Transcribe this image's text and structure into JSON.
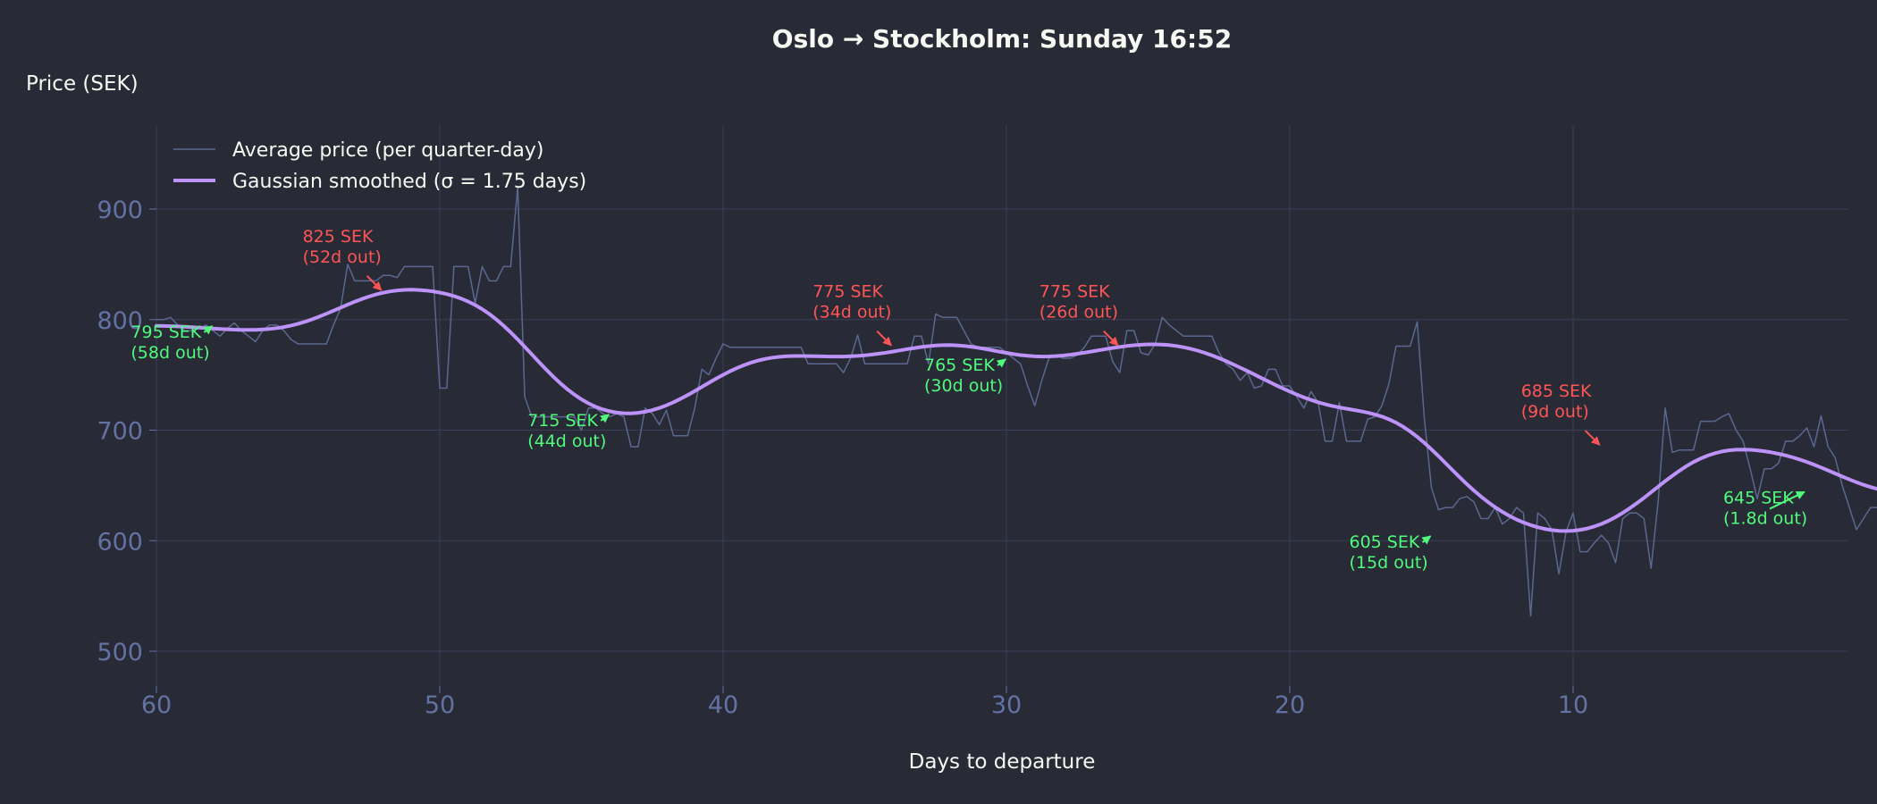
{
  "chart_data": {
    "type": "line",
    "title": "Oslo → Stockholm: Sunday 16:52",
    "xlabel": "Days to departure",
    "ylabel": "Price (SEK)",
    "xlim": [
      60,
      0.25
    ],
    "ylim": [
      475,
      975
    ],
    "x_inverted": true,
    "grid": true,
    "legend_position": "top-left",
    "x_ticks": [
      60,
      50,
      40,
      30,
      20,
      10
    ],
    "x_tick_labels": [
      "60",
      "50",
      "40",
      "30",
      "20",
      "10"
    ],
    "y_ticks": [
      500,
      600,
      700,
      800,
      900
    ],
    "y_tick_labels": [
      "500",
      "600",
      "700",
      "800",
      "900"
    ],
    "colors": {
      "background": "#282a36",
      "raw": "#5a6890",
      "smoothed": "#bd93f9",
      "peak": "#ff5555",
      "trough": "#50fa7b",
      "tick": "#6272a4",
      "grid": "#3a3f58",
      "text": "#f8f8f2"
    },
    "series": [
      {
        "name": "Average price (per quarter-day)",
        "sampling_days": 0.25,
        "x_start": 60,
        "values": [
          800,
          800,
          802,
          795,
          790,
          790,
          792,
          795,
          790,
          785,
          792,
          797,
          790,
          785,
          780,
          790,
          795,
          795,
          790,
          782,
          778,
          778,
          778,
          778,
          778,
          795,
          810,
          850,
          835,
          835,
          835,
          835,
          840,
          840,
          838,
          848,
          848,
          848,
          848,
          848,
          738,
          738,
          848,
          848,
          848,
          815,
          848,
          835,
          835,
          848,
          848,
          920,
          730,
          712,
          712,
          712,
          712,
          712,
          712,
          712,
          700,
          720,
          720,
          715,
          712,
          715,
          712,
          685,
          685,
          720,
          715,
          705,
          718,
          695,
          695,
          695,
          720,
          755,
          750,
          765,
          778,
          775,
          775,
          775,
          775,
          775,
          775,
          775,
          775,
          775,
          775,
          775,
          760,
          760,
          760,
          760,
          760,
          752,
          765,
          786,
          760,
          760,
          760,
          760,
          760,
          760,
          760,
          785,
          785,
          760,
          805,
          802,
          802,
          802,
          790,
          778,
          775,
          775,
          775,
          775,
          770,
          765,
          760,
          740,
          722,
          745,
          765,
          768,
          765,
          765,
          768,
          775,
          785,
          785,
          785,
          762,
          752,
          790,
          790,
          770,
          768,
          778,
          802,
          795,
          790,
          785,
          785,
          785,
          785,
          785,
          770,
          760,
          755,
          745,
          752,
          738,
          740,
          755,
          755,
          740,
          740,
          730,
          720,
          735,
          725,
          690,
          690,
          725,
          690,
          690,
          690,
          710,
          712,
          722,
          742,
          776,
          776,
          776,
          798,
          710,
          648,
          628,
          630,
          630,
          638,
          640,
          635,
          620,
          620,
          630,
          615,
          620,
          630,
          625,
          532,
          625,
          620,
          610,
          570,
          608,
          625,
          590,
          590,
          598,
          605,
          598,
          580,
          620,
          625,
          625,
          620,
          575,
          635,
          720,
          680,
          682,
          682,
          682,
          708,
          708,
          708,
          712,
          715,
          700,
          690,
          665,
          638,
          665,
          665,
          670,
          690,
          690,
          695,
          702,
          685,
          713,
          685,
          675,
          650,
          630,
          610,
          620,
          630,
          630,
          628,
          625,
          640,
          648,
          640,
          638,
          638,
          660,
          650,
          650
        ]
      },
      {
        "name": "Gaussian smoothed (σ = 1.75 days)",
        "sigma_days": 1.75,
        "derived_from": "Average price (per quarter-day)"
      }
    ],
    "annotations": [
      {
        "kind": "trough",
        "price": 795,
        "days": 58,
        "line1": "795 SEK",
        "line2": "(58d out)"
      },
      {
        "kind": "peak",
        "price": 825,
        "days": 52,
        "line1": "825 SEK",
        "line2": "(52d out)"
      },
      {
        "kind": "trough",
        "price": 715,
        "days": 44,
        "line1": "715 SEK",
        "line2": "(44d out)"
      },
      {
        "kind": "peak",
        "price": 775,
        "days": 34,
        "line1": "775 SEK",
        "line2": "(34d out)"
      },
      {
        "kind": "trough",
        "price": 765,
        "days": 30,
        "line1": "765 SEK",
        "line2": "(30d out)"
      },
      {
        "kind": "peak",
        "price": 775,
        "days": 26,
        "line1": "775 SEK",
        "line2": "(26d out)"
      },
      {
        "kind": "trough",
        "price": 605,
        "days": 15,
        "line1": "605 SEK",
        "line2": "(15d out)"
      },
      {
        "kind": "peak",
        "price": 685,
        "days": 9,
        "line1": "685 SEK",
        "line2": "(9d out)"
      },
      {
        "kind": "trough",
        "price": 645,
        "days": 1.8,
        "line1": "645 SEK",
        "line2": "(1.8d out)"
      }
    ],
    "smoothed_key_points": [
      {
        "days": 60,
        "price": 792
      },
      {
        "days": 57.5,
        "price": 790
      },
      {
        "days": 51.8,
        "price": 822
      },
      {
        "days": 44.6,
        "price": 714
      },
      {
        "days": 38,
        "price": 765
      },
      {
        "days": 33.8,
        "price": 777
      },
      {
        "days": 30,
        "price": 765
      },
      {
        "days": 26.5,
        "price": 774
      },
      {
        "days": 20,
        "price": 705
      },
      {
        "days": 15,
        "price": 609
      },
      {
        "days": 9.2,
        "price": 684
      },
      {
        "days": 2,
        "price": 642
      },
      {
        "days": 0.25,
        "price": 643
      }
    ]
  }
}
